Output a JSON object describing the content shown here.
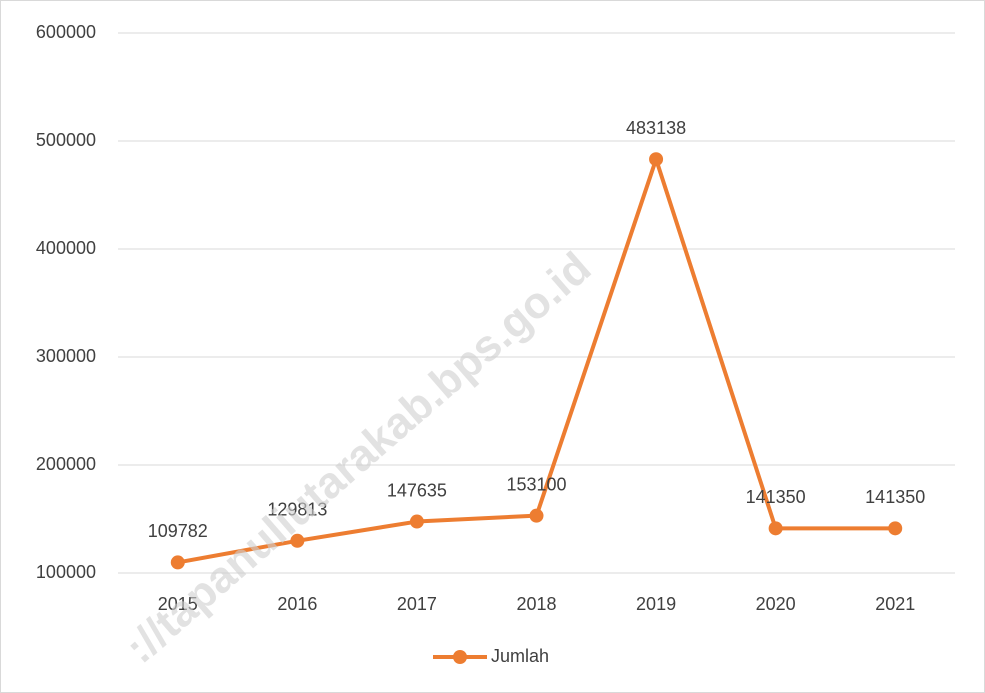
{
  "chart_data": {
    "type": "line",
    "categories": [
      "2015",
      "2016",
      "2017",
      "2018",
      "2019",
      "2020",
      "2021"
    ],
    "series": [
      {
        "name": "Jumlah",
        "color": "#ed7d31",
        "values": [
          109782,
          129813,
          147635,
          153100,
          483138,
          141350,
          141350
        ]
      }
    ],
    "ylim": [
      100000,
      600000
    ],
    "yticks": [
      100000,
      200000,
      300000,
      400000,
      500000,
      600000
    ],
    "grid": true,
    "legend": "bottom",
    "watermark": "://tapanuliutarakab.bps.go.id"
  }
}
